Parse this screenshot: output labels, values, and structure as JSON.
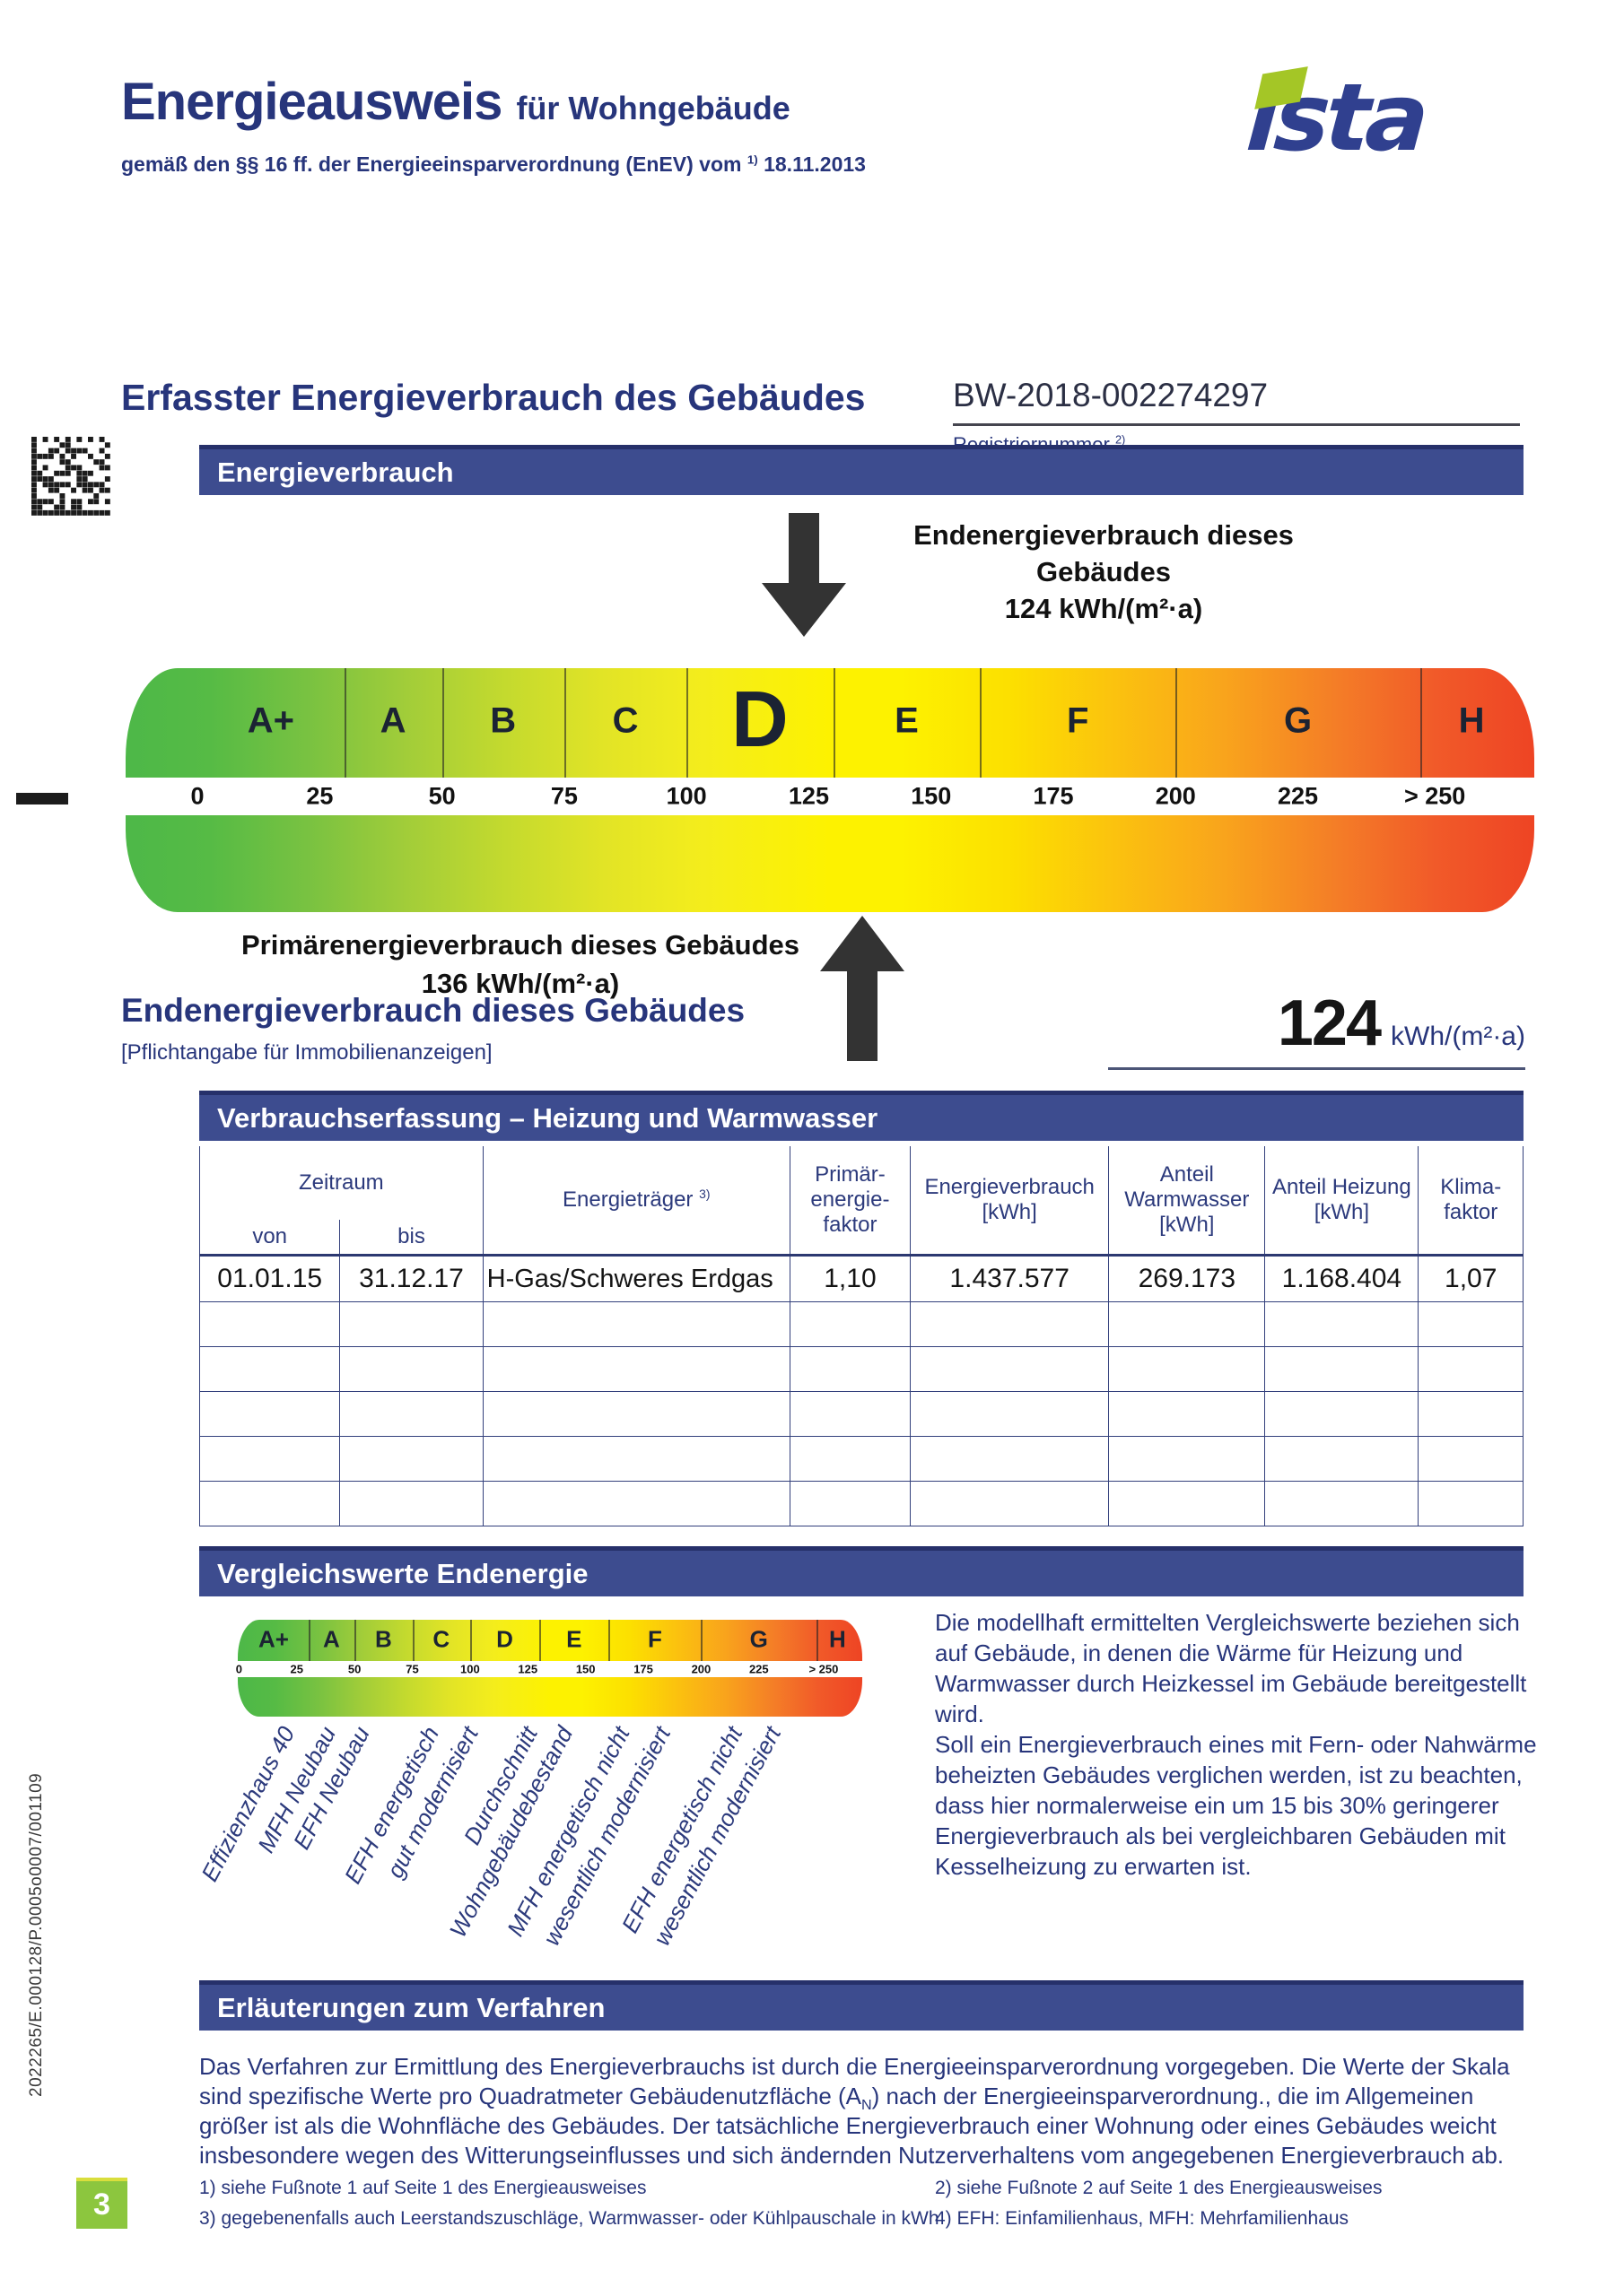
{
  "page": {
    "title_main": "Energieausweis",
    "title_suffix": "für Wohngebäude",
    "subtitle_prefix": "gemäß den §§ 16 ff. der Energieeinsparverordnung (EnEV) vom",
    "subtitle_marker": "1)",
    "subtitle_date": "18.11.2013",
    "logo": "ista",
    "margin_code": "2022265/E.000128/P.0005o0007/001109",
    "page_number": "3"
  },
  "colors": {
    "accent_navy": "#27357b",
    "banner_blue": "#3d4c8f",
    "page_green": "#8cc63e",
    "logo_blue": "#30408f",
    "logo_green": "#a4c626"
  },
  "section_header": {
    "heading": "Erfasster Energieverbrauch des Gebäudes",
    "reg_number": "BW-2018-002274297",
    "reg_label": "Registriernummer",
    "reg_marker": "2)"
  },
  "banners": {
    "energy_consumption": "Energieverbrauch",
    "consumption_recording": "Verbrauchserfassung – Heizung und Warmwasser",
    "comparison_values": "Vergleichswerte Endenergie",
    "explanations": "Erläuterungen zum Verfahren"
  },
  "chart_data": [
    {
      "type": "scale",
      "title": "Energieverbrauch",
      "classes": [
        "A+",
        "A",
        "B",
        "C",
        "D",
        "E",
        "F",
        "G",
        "H"
      ],
      "class_upper_bounds": [
        30,
        50,
        75,
        100,
        130,
        160,
        200,
        250,
        null
      ],
      "axis_ticks": [
        "0",
        "25",
        "50",
        "75",
        "100",
        "125",
        "150",
        "175",
        "200",
        "225"
      ],
      "axis_tick_values": [
        0,
        25,
        50,
        75,
        100,
        125,
        150,
        175,
        200,
        225
      ],
      "axis_last_tick_label": "> 250",
      "axis_range": [
        0,
        250
      ],
      "unit": "kWh/(m²·a)",
      "highlighted_class": "D",
      "markers": [
        {
          "name": "end_energy",
          "arrow": "down",
          "value": 124,
          "label": "Endenergieverbrauch dieses Gebäudes",
          "value_label": "124 kWh/(m²·a)"
        },
        {
          "name": "primary_energy",
          "arrow": "up",
          "value": 136,
          "label": "Primärenergieverbrauch dieses Gebäudes",
          "value_label": "136 kWh/(m²·a)"
        }
      ]
    },
    {
      "type": "scale",
      "title": "Vergleichswerte Endenergie",
      "classes": [
        "A+",
        "A",
        "B",
        "C",
        "D",
        "E",
        "F",
        "G",
        "H"
      ],
      "class_upper_bounds": [
        30,
        50,
        75,
        100,
        130,
        160,
        200,
        250,
        null
      ],
      "axis_ticks": [
        "0",
        "25",
        "50",
        "75",
        "100",
        "125",
        "150",
        "175",
        "200",
        "225"
      ],
      "axis_tick_values": [
        0,
        25,
        50,
        75,
        100,
        125,
        150,
        175,
        200,
        225
      ],
      "axis_last_tick_label": "> 250",
      "axis_range": [
        0,
        250
      ],
      "comparison_labels": [
        "Effizienzhaus 40",
        "MFH Neubau",
        "EFH Neubau",
        "EFH energetisch\ngut modernisiert",
        "Durchschnitt\nWohngebäudebestand",
        "MFH energetisch nicht\nwesentlich modernisiert",
        "EFH energetisch nicht\nwesentlich modernisiert"
      ]
    }
  ],
  "summary": {
    "heading": "Endenergieverbrauch dieses Gebäudes",
    "note": "[Pflichtangabe für Immobilienanzeigen]",
    "value": "124",
    "unit": "kWh/(m²·a)"
  },
  "table": {
    "headers": {
      "zeitraum": "Zeitraum",
      "von": "von",
      "bis": "bis",
      "energietraeger": "Energieträger",
      "energietraeger_marker": "3)",
      "pef": [
        "Primär-",
        "energie-",
        "faktor"
      ],
      "verbrauch": [
        "Energieverbrauch",
        "[kWh]"
      ],
      "anteil_ww": [
        "Anteil",
        "Warmwasser",
        "[kWh]"
      ],
      "anteil_hz": [
        "Anteil Heizung",
        "[kWh]"
      ],
      "klima": [
        "Klima-",
        "faktor"
      ]
    },
    "rows": [
      [
        "01.01.15",
        "31.12.17",
        "H-Gas/Schweres Erdgas",
        "1,10",
        "1.437.577",
        "269.173",
        "1.168.404",
        "1,07"
      ]
    ],
    "empty_row_count": 5
  },
  "comparison": {
    "marker": "4)",
    "text": [
      "Die modellhaft ermittelten Vergleichswerte beziehen sich auf Gebäude, in denen die Wärme für Heizung und Warmwasser durch Heizkessel im Gebäude bereitgestellt wird.",
      "Soll ein Energieverbrauch eines mit Fern- oder Nahwärme beheizten Gebäudes verglichen werden, ist zu beachten, dass hier normalerweise ein um 15 bis 30% geringerer Energieverbrauch als bei vergleichbaren Gebäuden mit Kesselheizung zu erwarten ist."
    ]
  },
  "explanation": {
    "p_before": "Das Verfahren zur Ermittlung des Energieverbrauchs ist durch die Energieeinsparverordnung vorgegeben. Die Werte der Skala sind spezifische Werte pro Quadratmeter Gebäudenutzfläche (A",
    "p_sub": "N",
    "p_after": ") nach der Energieeinsparverordnung., die im Allgemeinen größer ist als die Wohnfläche des Gebäudes. Der tatsächliche Energieverbrauch einer Wohnung oder eines Gebäudes weicht insbesondere wegen des Witterungseinflusses und sich ändernden Nutzerverhaltens vom angegebenen Energieverbrauch ab."
  },
  "footnotes": {
    "col1": [
      "1) siehe Fußnote 1 auf Seite 1 des Energieausweises",
      "3) gegebenenfalls auch Leerstandszuschläge, Warmwasser- oder Kühlpauschale in kWh"
    ],
    "col2": [
      "2) siehe Fußnote 2 auf Seite 1 des Energieausweises",
      "4) EFH: Einfamilienhaus, MFH: Mehrfamilienhaus"
    ]
  }
}
